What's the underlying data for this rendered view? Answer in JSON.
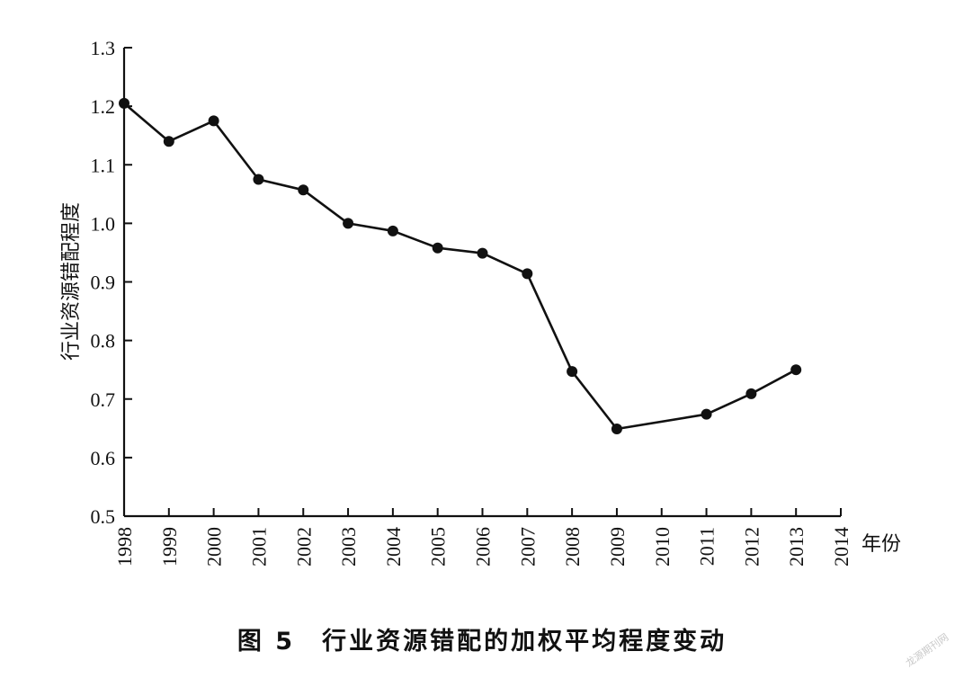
{
  "chart_data": {
    "type": "line",
    "title": "",
    "xlabel": "年份",
    "ylabel": "行业资源错配程度",
    "xlim": [
      1998,
      2014
    ],
    "ylim": [
      0.5,
      1.3
    ],
    "xticks": [
      "1998",
      "1999",
      "2000",
      "2001",
      "2002",
      "2003",
      "2004",
      "2005",
      "2006",
      "2007",
      "2008",
      "2009",
      "2010",
      "2011",
      "2012",
      "2013",
      "2014"
    ],
    "yticks": [
      "0.5",
      "0.6",
      "0.7",
      "0.8",
      "0.9",
      "1.0",
      "1.1",
      "1.2",
      "1.3"
    ],
    "grid": false,
    "legend": "none",
    "series": [
      {
        "x": [
          1998,
          1999,
          2000,
          2001,
          2002,
          2003,
          2004,
          2005,
          2006,
          2007,
          2008,
          2009,
          2011,
          2012,
          2013
        ],
        "y": [
          1.205,
          1.14,
          1.175,
          1.075,
          1.057,
          1.0,
          0.987,
          0.958,
          0.949,
          0.914,
          0.747,
          0.649,
          0.674,
          0.709,
          0.75
        ],
        "color": "#111111",
        "marker": "circle"
      }
    ]
  },
  "caption": "图 5　行业资源错配的加权平均程度变动",
  "watermark": "龙源期刊网"
}
